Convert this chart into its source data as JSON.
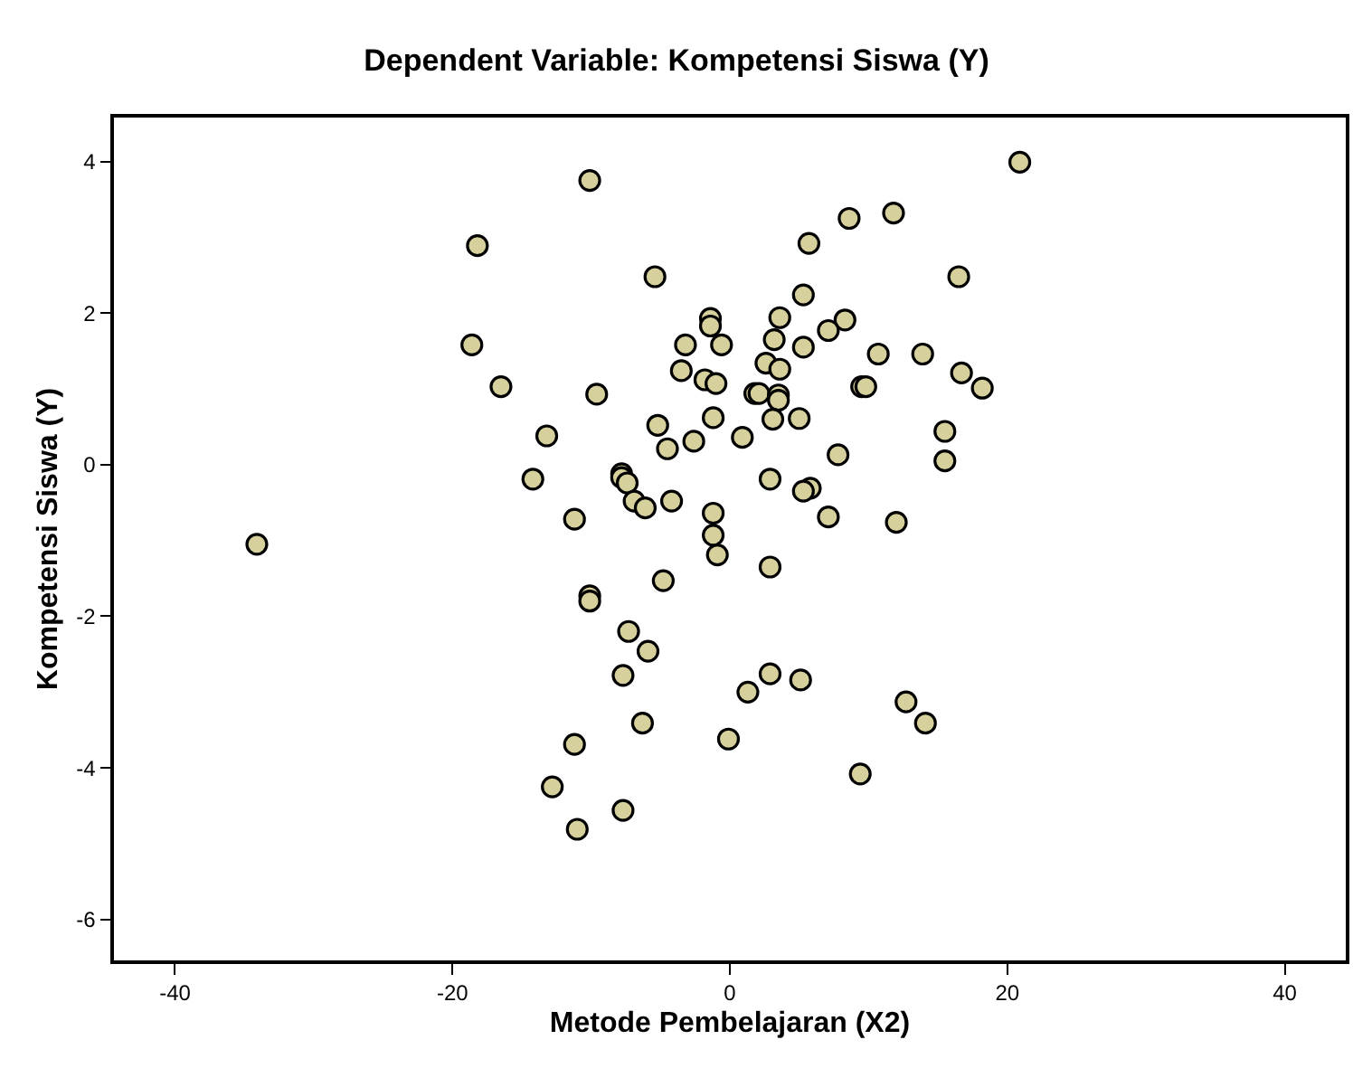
{
  "chart_data": {
    "type": "scatter",
    "title": "Dependent Variable: Kompetensi Siswa (Y)",
    "xlabel": "Metode Pembelajaran (X2)",
    "ylabel": "Kompetensi Siswa (Y)",
    "xlim": [
      -44.4,
      44.4
    ],
    "xticks": [
      -40,
      -20,
      0,
      20,
      40
    ],
    "ylim": [
      -6.54,
      4.58
    ],
    "yticks": [
      -6,
      -4,
      -2,
      0,
      2,
      4
    ],
    "grid": false,
    "marker": "circle",
    "series": [
      {
        "color": "#d6d09c",
        "x": [
          -10.1,
          -18.2,
          -5.4,
          -1.4,
          -1.4,
          -3.2,
          -0.6,
          -18.6,
          -3.5,
          -1.8,
          -1.0,
          -16.5,
          -9.6,
          1.8,
          -5.2,
          -1.2,
          -4.5,
          -2.6,
          0.9,
          -13.2,
          -14.2,
          -7.8,
          -7.8,
          -7.4,
          -6.9,
          -6.1,
          -4.2,
          -11.2,
          -1.2,
          -1.2,
          -34.1,
          -0.9,
          -4.8,
          -10.1,
          -10.1,
          -7.3,
          -5.9,
          -7.7,
          1.3,
          -6.3,
          -0.1,
          -11.2,
          -12.8,
          -7.7,
          -11.0,
          20.9,
          11.8,
          8.6,
          5.7,
          16.5,
          5.3,
          3.6,
          8.3,
          7.1,
          3.2,
          5.3,
          10.7,
          13.9,
          2.6,
          3.6,
          16.7,
          18.2,
          9.5,
          9.8,
          2.1,
          3.5,
          3.5,
          3.1,
          5.0,
          15.5,
          7.8,
          15.5,
          2.9,
          5.8,
          5.3,
          7.1,
          12.0,
          2.9,
          2.9,
          5.1,
          12.7,
          14.1,
          9.4
        ],
        "values": [
          3.75,
          2.89,
          2.48,
          1.93,
          1.83,
          1.58,
          1.58,
          1.58,
          1.24,
          1.12,
          1.07,
          1.03,
          0.93,
          0.94,
          0.52,
          0.62,
          0.21,
          0.31,
          0.36,
          0.38,
          -0.19,
          -0.12,
          -0.17,
          -0.24,
          -0.48,
          -0.57,
          -0.48,
          -0.72,
          -0.64,
          -0.93,
          -1.05,
          -1.19,
          -1.53,
          -1.73,
          -1.8,
          -2.2,
          -2.46,
          -2.78,
          -3.0,
          -3.41,
          -3.62,
          -3.69,
          -4.25,
          -4.56,
          -4.81,
          3.99,
          3.32,
          3.25,
          2.92,
          2.48,
          2.24,
          1.94,
          1.91,
          1.77,
          1.65,
          1.55,
          1.46,
          1.46,
          1.34,
          1.26,
          1.21,
          1.01,
          1.03,
          1.03,
          0.94,
          0.92,
          0.85,
          0.6,
          0.61,
          0.44,
          0.13,
          0.05,
          -0.19,
          -0.31,
          -0.35,
          -0.69,
          -0.76,
          -1.35,
          -2.76,
          -2.84,
          -3.13,
          -3.41,
          -4.08
        ]
      }
    ]
  }
}
